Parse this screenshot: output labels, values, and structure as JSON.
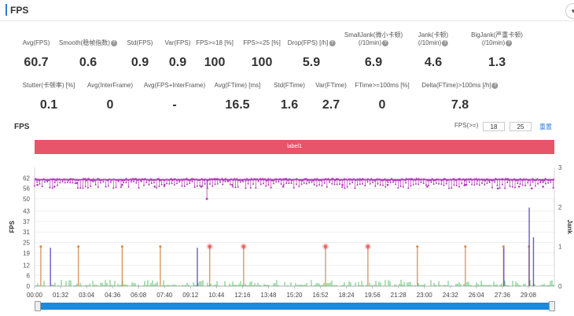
{
  "header": {
    "title": "FPS",
    "toggle_icon": "chevron-down-icon",
    "toggle_glyph": "▾"
  },
  "metrics_row1": [
    {
      "label": "Avg(FPS)",
      "value": "60.7",
      "help": false
    },
    {
      "label": "Smooth(稳帧指数)",
      "value": "0.6",
      "help": true
    },
    {
      "label": "Std(FPS)",
      "value": "0.9",
      "help": false
    },
    {
      "label": "Var(FPS)",
      "value": "0.9",
      "help": false
    },
    {
      "label": "FPS>=18 [%]",
      "value": "100",
      "help": false
    },
    {
      "label": "FPS>=25 [%]",
      "value": "100",
      "help": false
    },
    {
      "label": "Drop(FPS) [/h]",
      "value": "5.9",
      "help": true
    },
    {
      "label": "SmallJank(微小卡顿)",
      "label2": "(/10min)",
      "value": "6.9",
      "help": true
    },
    {
      "label": "Jank(卡顿)",
      "label2": "(/10min)",
      "value": "4.6",
      "help": true
    },
    {
      "label": "BigJank(严重卡顿)",
      "label2": "(/10min)",
      "value": "1.3",
      "help": true
    }
  ],
  "metrics_row2": [
    {
      "label": "Stutter(卡顿率) [%]",
      "value": "0.1",
      "help": false
    },
    {
      "label": "Avg(InterFrame)",
      "value": "0",
      "help": false
    },
    {
      "label": "Avg(FPS+InterFrame)",
      "value": "-",
      "help": false
    },
    {
      "label": "Avg(FTime) [ms]",
      "value": "16.5",
      "help": false
    },
    {
      "label": "Std(FTime)",
      "value": "1.6",
      "help": false
    },
    {
      "label": "Var(FTime)",
      "value": "2.7",
      "help": false
    },
    {
      "label": "FTime>=100ms [%]",
      "value": "0",
      "help": false
    },
    {
      "label": "Delta(FTime)>100ms [/h]",
      "value": "7.8",
      "help": true
    }
  ],
  "help_glyph": "?",
  "chart_section": {
    "title": "FPS",
    "filter_label": "FPS(>=)",
    "filter_values": [
      "18",
      "25"
    ],
    "reset_label": "重置",
    "band_label": "label1"
  },
  "chart_data": {
    "type": "line",
    "ylabel_left": "FPS",
    "ylabel_right": "Jank",
    "yticks_left": [
      "0",
      "6",
      "12",
      "19",
      "25",
      "31",
      "37",
      "43",
      "50",
      "56",
      "62"
    ],
    "ylim_left": [
      0,
      68
    ],
    "yticks_right": [
      "0",
      "1",
      "2",
      "3"
    ],
    "ylim_right": [
      0,
      3
    ],
    "xticks": [
      "00:00",
      "01:32",
      "03:04",
      "04:36",
      "06:08",
      "07:40",
      "09:12",
      "10:44",
      "12:16",
      "13:48",
      "15:20",
      "16:52",
      "18:24",
      "19:56",
      "21:28",
      "23:00",
      "24:32",
      "26:04",
      "27:36",
      "29:08"
    ],
    "xlim_seconds": [
      0,
      1840
    ],
    "grid": true,
    "series": [
      {
        "name": "FPS",
        "color": "#b03cb8",
        "baseline": 61,
        "dips": [
          [
            10,
            58
          ],
          [
            70,
            57
          ],
          [
            150,
            59
          ],
          [
            310,
            58
          ],
          [
            425,
            57
          ],
          [
            460,
            58
          ],
          [
            590,
            57
          ],
          [
            700,
            58
          ],
          [
            880,
            57
          ],
          [
            1090,
            58
          ],
          [
            1250,
            58
          ],
          [
            1390,
            57
          ],
          [
            1525,
            58
          ],
          [
            1640,
            56
          ],
          [
            1715,
            57
          ],
          [
            1760,
            56
          ],
          [
            1800,
            57
          ]
        ]
      },
      {
        "name": "Jank",
        "color": "#d6884a",
        "values_at": [
          22,
          155,
          310,
          445,
          620,
          740,
          1030,
          1180,
          1355,
          1525,
          1660,
          1750
        ]
      },
      {
        "name": "BigJank",
        "color": "#ef5b5b",
        "values_at": [
          620,
          740,
          1030,
          1180
        ]
      },
      {
        "name": "SmallJank",
        "color": "#6a5acd",
        "values_at": [
          45,
          565,
          1650,
          1740,
          1755
        ],
        "heights": [
          22,
          22,
          22,
          45,
          28
        ]
      }
    ]
  },
  "scrollbar": {
    "left_handle": "scroll-handle-left",
    "right_handle": "scroll-handle-right"
  }
}
